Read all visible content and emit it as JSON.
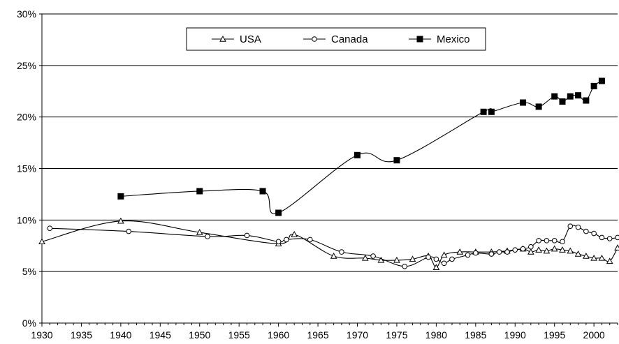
{
  "chart_data": {
    "type": "line",
    "title": "",
    "xlabel": "",
    "ylabel": "",
    "xlim": [
      1930,
      2003
    ],
    "ylim": [
      0,
      30
    ],
    "grid": "horizontal",
    "legend_position": "top-center",
    "x_ticks": [
      "1930",
      "1935",
      "1940",
      "1945",
      "1950",
      "1955",
      "1960",
      "1965",
      "1970",
      "1975",
      "1980",
      "1985",
      "1990",
      "1995",
      "2000"
    ],
    "y_ticks": [
      "0%",
      "5%",
      "10%",
      "15%",
      "20%",
      "25%",
      "30%"
    ],
    "series": [
      {
        "name": "USA",
        "marker": "open-triangle",
        "x": [
          1930,
          1940,
          1950,
          1960,
          1962,
          1967,
          1971,
          1973,
          1975,
          1977,
          1979,
          1980,
          1981,
          1983,
          1985,
          1987,
          1989,
          1991,
          1992,
          1993,
          1994,
          1995,
          1996,
          1997,
          1998,
          1999,
          2000,
          2001,
          2002,
          2003
        ],
        "y": [
          7.9,
          9.9,
          8.8,
          7.7,
          8.6,
          6.5,
          6.3,
          6.1,
          6.1,
          6.2,
          6.5,
          5.4,
          6.6,
          6.9,
          6.9,
          6.9,
          7.0,
          7.2,
          6.9,
          7.1,
          7.0,
          7.2,
          7.1,
          7.0,
          6.7,
          6.5,
          6.3,
          6.3,
          6.0,
          7.3
        ],
        "color": "#000000"
      },
      {
        "name": "Canada",
        "marker": "open-circle",
        "x": [
          1931,
          1941,
          1951,
          1956,
          1960,
          1961,
          1964,
          1968,
          1972,
          1976,
          1979,
          1980,
          1981,
          1982,
          1984,
          1985,
          1987,
          1988,
          1989,
          1990,
          1991,
          1992,
          1993,
          1994,
          1995,
          1996,
          1997,
          1998,
          1999,
          2000,
          2001,
          2002,
          2003
        ],
        "y": [
          9.2,
          8.9,
          8.4,
          8.5,
          7.9,
          8.1,
          8.1,
          6.9,
          6.5,
          5.5,
          6.4,
          6.2,
          5.8,
          6.2,
          6.6,
          6.8,
          6.7,
          6.9,
          6.9,
          7.1,
          7.2,
          7.4,
          8.0,
          8.0,
          8.0,
          7.9,
          9.4,
          9.3,
          8.9,
          8.7,
          8.3,
          8.2,
          8.3
        ],
        "color": "#000000"
      },
      {
        "name": "Mexico",
        "marker": "filled-square",
        "x": [
          1940,
          1950,
          1958,
          1960,
          1970,
          1975,
          1986,
          1987,
          1991,
          1993,
          1995,
          1996,
          1997,
          1998,
          1999,
          2000,
          2001
        ],
        "y": [
          12.3,
          12.8,
          12.8,
          10.7,
          16.3,
          15.8,
          20.5,
          20.5,
          21.4,
          21.0,
          22.0,
          21.5,
          22.0,
          22.1,
          21.6,
          23.0,
          23.5
        ],
        "color": "#000000"
      }
    ]
  }
}
